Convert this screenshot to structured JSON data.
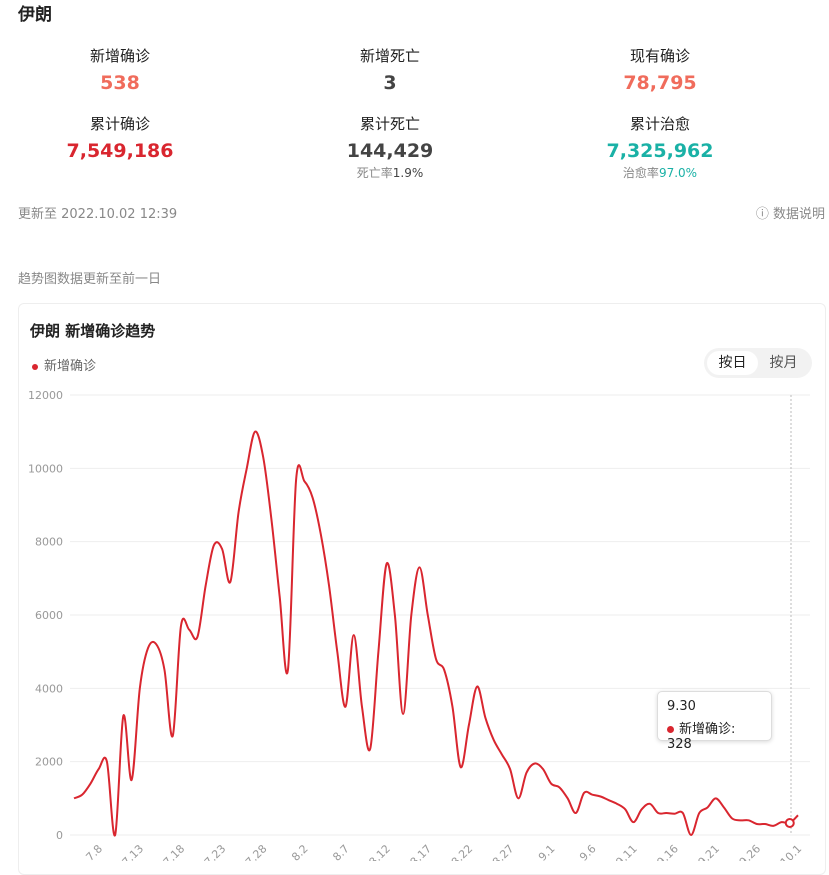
{
  "title": "伊朗",
  "stats": [
    {
      "label": "新增确诊",
      "value": "538",
      "color": "#f06c5c"
    },
    {
      "label": "新增死亡",
      "value": "3",
      "color": "#444444"
    },
    {
      "label": "现有确诊",
      "value": "78,795",
      "color": "#f06c5c"
    },
    {
      "label": "累计确诊",
      "value": "7,549,186",
      "color": "#d9262f"
    },
    {
      "label": "累计死亡",
      "value": "144,429",
      "color": "#444444",
      "sub_label": "死亡率",
      "sub_value": "1.9%"
    },
    {
      "label": "累计治愈",
      "value": "7,325,962",
      "color": "#1ab1a6",
      "sub_label": "治愈率",
      "sub_value": "97.0%"
    }
  ],
  "updated": "更新至 2022.10.02 12:39",
  "explain_icon": "question-circle-icon",
  "explain": "数据说明",
  "note": "趋势图数据更新至前一日",
  "chart_title": "伊朗 新增确诊趋势",
  "toggle": {
    "day": "按日",
    "month": "按月",
    "selected": "day"
  },
  "tooltip": {
    "date": "9.30",
    "label": "新增确诊: 328"
  },
  "chart_data": {
    "type": "line",
    "title": "伊朗 新增确诊趋势",
    "legend": {
      "entries": [
        "新增确诊"
      ],
      "placement": "top-left"
    },
    "ylim": [
      0,
      12000
    ],
    "yticks": [
      0,
      2000,
      4000,
      6000,
      8000,
      10000,
      12000
    ],
    "grid": true,
    "xtick_labels": [
      "7.8",
      "7.13",
      "7.18",
      "7.23",
      "7.28",
      "8.2",
      "8.7",
      "8.12",
      "8.17",
      "8.22",
      "8.27",
      "9.1",
      "9.6",
      "9.11",
      "9.16",
      "9.21",
      "9.26",
      "10.1"
    ],
    "series": [
      {
        "name": "新增确诊",
        "color": "#d9262f",
        "x": [
          "7.5",
          "7.6",
          "7.7",
          "7.8",
          "7.9",
          "7.10",
          "7.11",
          "7.12",
          "7.13",
          "7.14",
          "7.15",
          "7.16",
          "7.17",
          "7.18",
          "7.19",
          "7.20",
          "7.21",
          "7.22",
          "7.23",
          "7.24",
          "7.25",
          "7.26",
          "7.27",
          "7.28",
          "7.29",
          "7.30",
          "7.31",
          "8.1",
          "8.2",
          "8.3",
          "8.4",
          "8.5",
          "8.6",
          "8.7",
          "8.8",
          "8.9",
          "8.10",
          "8.11",
          "8.12",
          "8.13",
          "8.14",
          "8.15",
          "8.16",
          "8.17",
          "8.18",
          "8.19",
          "8.20",
          "8.21",
          "8.22",
          "8.23",
          "8.24",
          "8.25",
          "8.26",
          "8.27",
          "8.28",
          "8.29",
          "8.30",
          "8.31",
          "9.1",
          "9.2",
          "9.3",
          "9.4",
          "9.5",
          "9.6",
          "9.7",
          "9.8",
          "9.9",
          "9.10",
          "9.11",
          "9.12",
          "9.13",
          "9.14",
          "9.15",
          "9.16",
          "9.17",
          "9.18",
          "9.19",
          "9.20",
          "9.21",
          "9.22",
          "9.23",
          "9.24",
          "9.25",
          "9.26",
          "9.27",
          "9.28",
          "9.29",
          "9.30",
          "10.1"
        ],
        "values": [
          1000,
          1100,
          1400,
          1800,
          2000,
          0,
          3250,
          1500,
          4000,
          5100,
          5200,
          4500,
          2700,
          5700,
          5600,
          5400,
          6800,
          7900,
          7800,
          6900,
          8800,
          10000,
          11000,
          10300,
          8600,
          6500,
          4500,
          9700,
          9650,
          9200,
          8200,
          6800,
          5000,
          3500,
          5450,
          3500,
          2350,
          5000,
          7400,
          6000,
          3300,
          6000,
          7300,
          6000,
          4800,
          4500,
          3500,
          1850,
          3000,
          4050,
          3200,
          2600,
          2200,
          1800,
          1000,
          1700,
          1950,
          1800,
          1400,
          1300,
          1000,
          600,
          1150,
          1100,
          1050,
          950,
          850,
          700,
          350,
          700,
          850,
          600,
          600,
          580,
          600,
          0,
          600,
          750,
          1000,
          750,
          450,
          400,
          400,
          300,
          300,
          250,
          350,
          328,
          538
        ]
      }
    ]
  }
}
